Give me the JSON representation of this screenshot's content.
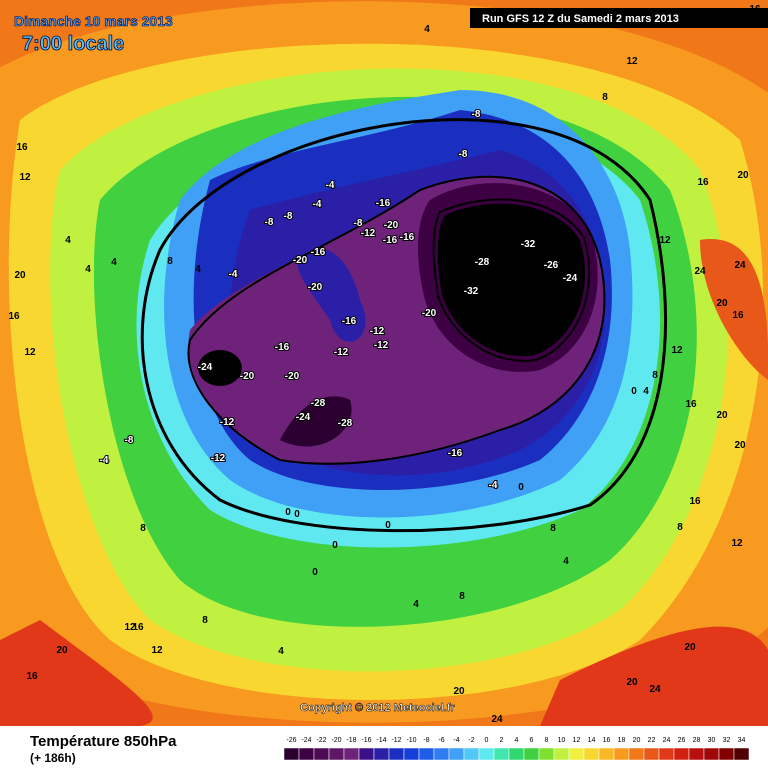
{
  "header": {
    "date": "Dimanche 10 mars 2013",
    "time": "7:00 locale",
    "run": "Run GFS 12 Z du Samedi 2 mars 2013"
  },
  "footer": {
    "title": "Température 850hPa",
    "lead": "(+ 186h)",
    "copyright": "Copyright © 2012 Meteociel.fr"
  },
  "contour_labels": [
    -32,
    -28,
    -32,
    -26,
    -24,
    -20,
    -24,
    -20,
    -20,
    -16,
    -16,
    -12,
    -12,
    -12,
    -12,
    -12,
    -8,
    -4,
    -16,
    -28,
    -28,
    -24,
    -20,
    -20,
    -16,
    -16,
    -20,
    -16,
    -16,
    -12,
    -8,
    -8,
    -8,
    -4,
    -4,
    -4,
    -8,
    -8,
    8,
    12,
    4,
    16,
    12,
    4,
    4,
    4,
    8,
    4,
    20,
    16,
    12,
    0,
    4,
    8,
    12,
    16,
    20,
    20,
    24,
    24,
    20,
    16,
    12,
    16,
    20,
    16,
    -4,
    0,
    0,
    0,
    0,
    0,
    0,
    4,
    8,
    8,
    12,
    16,
    12,
    20,
    16,
    8,
    4,
    20,
    20,
    24,
    24,
    20,
    8,
    4,
    8,
    12,
    16
  ],
  "scale": [
    {
      "value": -26,
      "color": "#2b0030"
    },
    {
      "value": -24,
      "color": "#3d0042"
    },
    {
      "value": -22,
      "color": "#4e0a55"
    },
    {
      "value": -20,
      "color": "#5e1767"
    },
    {
      "value": -18,
      "color": "#6e2279"
    },
    {
      "value": -16,
      "color": "#3a0f8a"
    },
    {
      "value": -14,
      "color": "#2a1fa6"
    },
    {
      "value": -12,
      "color": "#1a2fc0"
    },
    {
      "value": -10,
      "color": "#1540d8"
    },
    {
      "value": -8,
      "color": "#1f5ce8"
    },
    {
      "value": -6,
      "color": "#2f7cf0"
    },
    {
      "value": -4,
      "color": "#3fa0f5"
    },
    {
      "value": -2,
      "color": "#50c8f8"
    },
    {
      "value": 0,
      "color": "#60e8f0"
    },
    {
      "value": 2,
      "color": "#40e8b0"
    },
    {
      "value": 4,
      "color": "#30d870"
    },
    {
      "value": 6,
      "color": "#40d040"
    },
    {
      "value": 8,
      "color": "#80e030"
    },
    {
      "value": 10,
      "color": "#c0f040"
    },
    {
      "value": 12,
      "color": "#f0f040"
    },
    {
      "value": 14,
      "color": "#f8d830"
    },
    {
      "value": 16,
      "color": "#f8b828"
    },
    {
      "value": 18,
      "color": "#f89a20"
    },
    {
      "value": 20,
      "color": "#f07818"
    },
    {
      "value": 22,
      "color": "#e85818"
    },
    {
      "value": 24,
      "color": "#e03818"
    },
    {
      "value": 26,
      "color": "#d02010"
    },
    {
      "value": 28,
      "color": "#b81010"
    },
    {
      "value": 30,
      "color": "#a00808"
    },
    {
      "value": 32,
      "color": "#800000"
    },
    {
      "value": 34,
      "color": "#500000"
    }
  ]
}
